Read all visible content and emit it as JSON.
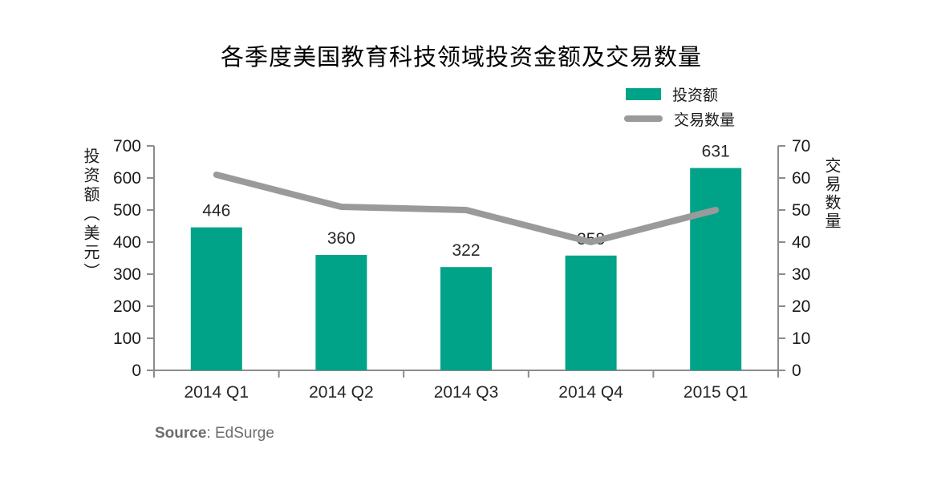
{
  "title": "各季度美国教育科技领域投资金额及交易数量",
  "legend": {
    "bar_label": "投资额",
    "line_label": "交易数量"
  },
  "axes": {
    "left_title": "投资额（美元）",
    "right_title": "交易数量",
    "left_ticks": [
      0,
      100,
      200,
      300,
      400,
      500,
      600,
      700
    ],
    "right_ticks": [
      0,
      10,
      20,
      30,
      40,
      50,
      60,
      70
    ]
  },
  "source": {
    "prefix": "Source",
    "rest": ": EdSurge"
  },
  "colors": {
    "bar": "#00A388",
    "line": "#9A9A9A",
    "axis": "#8C8C8C",
    "tick_label": "#1a1a1a",
    "value_label": "#262626"
  },
  "chart_data": {
    "type": "bar+line combo",
    "title": "各季度美国教育科技领域投资金额及交易数量",
    "categories": [
      "2014 Q1",
      "2014 Q2",
      "2014 Q3",
      "2014 Q4",
      "2015 Q1"
    ],
    "series": [
      {
        "name": "投资额",
        "type": "bar",
        "axis": "left",
        "values": [
          446,
          360,
          322,
          358,
          631
        ],
        "color": "#00A388",
        "data_labels": [
          "446",
          "360",
          "322",
          "358",
          "631"
        ]
      },
      {
        "name": "交易数量",
        "type": "line",
        "axis": "right",
        "values": [
          61,
          51,
          50,
          40,
          50
        ],
        "color": "#9A9A9A"
      }
    ],
    "left_axis": {
      "label": "投资额（美元）",
      "lim": [
        0,
        700
      ],
      "step": 100
    },
    "right_axis": {
      "label": "交易数量",
      "lim": [
        0,
        70
      ],
      "step": 10
    },
    "grid": false,
    "legend_position": "top-right",
    "source": "Source: EdSurge"
  }
}
